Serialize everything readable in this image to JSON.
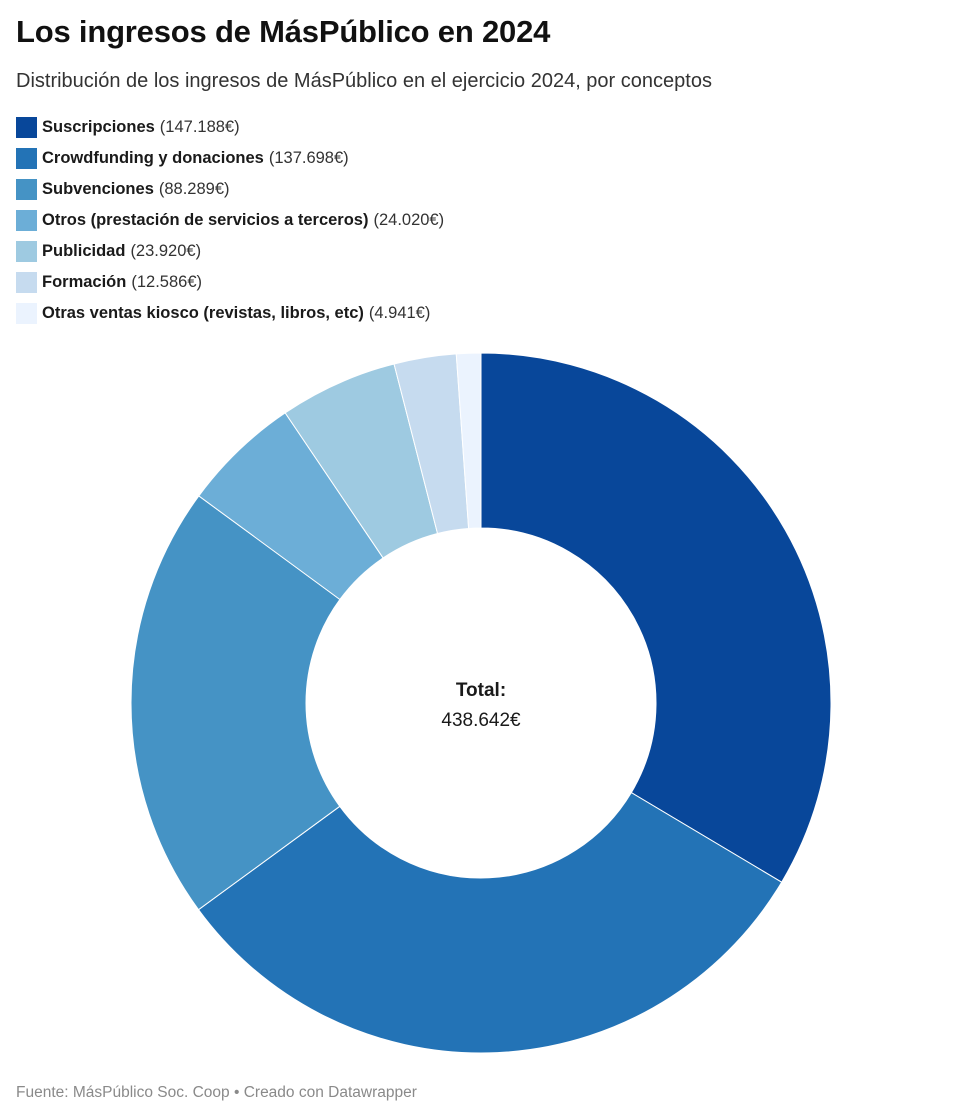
{
  "title": "Los ingresos de MásPúblico en 2024",
  "subtitle": "Distribución de los ingresos de MásPúblico en el ejercicio 2024, por conceptos",
  "footer": "Fuente: MásPúblico Soc. Coop • Creado con Datawrapper",
  "chart_data": {
    "type": "pie",
    "variant": "donut",
    "legend_position": "top-left",
    "center_label": "Total:",
    "center_value": "438.642€",
    "slices": [
      {
        "label": "Suscripciones",
        "value": 147188,
        "value_text": "(147.188€)",
        "color": "#08479a"
      },
      {
        "label": "Crowdfunding y donaciones",
        "value": 137698,
        "value_text": "(137.698€)",
        "color": "#2373b6"
      },
      {
        "label": "Subvenciones",
        "value": 88289,
        "value_text": "(88.289€)",
        "color": "#4593c5"
      },
      {
        "label": "Otros (prestación de servicios a terceros)",
        "value": 24020,
        "value_text": "(24.020€)",
        "color": "#6caed7"
      },
      {
        "label": "Publicidad",
        "value": 23920,
        "value_text": "(23.920€)",
        "color": "#9ecae1"
      },
      {
        "label": "Formación",
        "value": 12586,
        "value_text": "(12.586€)",
        "color": "#c6dbef"
      },
      {
        "label": "Otras ventas kiosco (revistas, libros, etc)",
        "value": 4941,
        "value_text": "(4.941€)",
        "color": "#ebf3fe"
      }
    ]
  }
}
